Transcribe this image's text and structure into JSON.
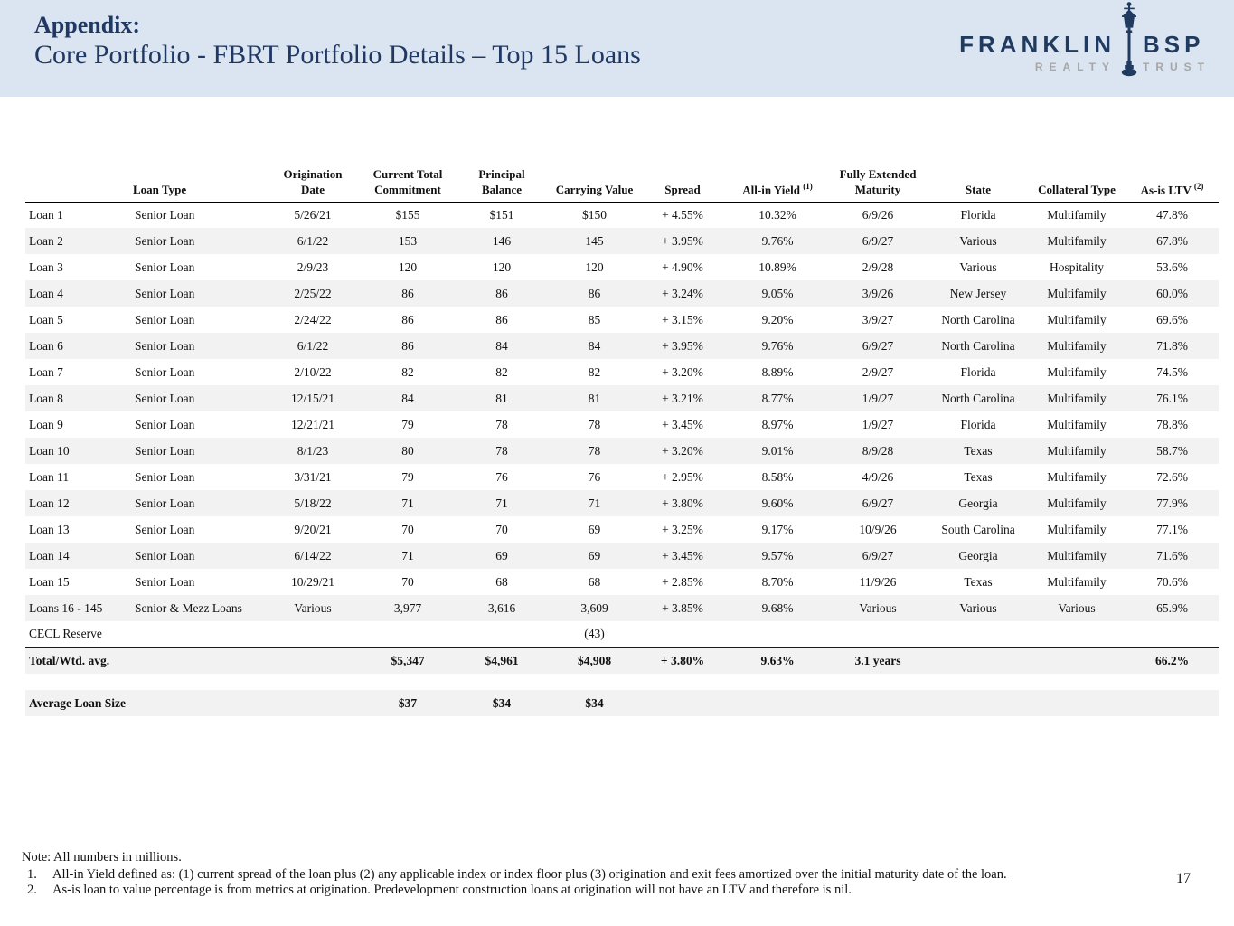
{
  "header": {
    "title_prefix": "Appendix:",
    "title": "Core Portfolio - FBRT Portfolio Details – Top 15 Loans",
    "background_color": "#dbe5f1",
    "title_color": "#1f3864"
  },
  "logo": {
    "name_left": "FRANKLIN",
    "name_right": "BSP",
    "sub_left": "REALTY",
    "sub_right": "TRUST",
    "navy_color": "#203a60",
    "gray_color": "#a6a6a6"
  },
  "table": {
    "header": [
      {
        "line1": "",
        "line2": ""
      },
      {
        "line1": "",
        "line2": "Loan Type"
      },
      {
        "line1": "Origination",
        "line2": "Date"
      },
      {
        "line1": "Current Total",
        "line2": "Commitment"
      },
      {
        "line1": "Principal",
        "line2": "Balance"
      },
      {
        "line1": "",
        "line2": "Carrying Value"
      },
      {
        "line1": "",
        "line2": "Spread"
      },
      {
        "line1": "",
        "line2": "All-in Yield ",
        "sup": "(1)"
      },
      {
        "line1": "Fully Extended",
        "line2": "Maturity"
      },
      {
        "line1": "",
        "line2": "State"
      },
      {
        "line1": "",
        "line2": "Collateral Type"
      },
      {
        "line1": "",
        "line2": "As-is LTV ",
        "sup": "(2)"
      }
    ],
    "rows": [
      {
        "shaded": false,
        "cells": [
          "Loan 1",
          "Senior Loan",
          "5/26/21",
          "$155",
          "$151",
          "$150",
          "+ 4.55%",
          "10.32%",
          "6/9/26",
          "Florida",
          "Multifamily",
          "47.8%"
        ]
      },
      {
        "shaded": true,
        "cells": [
          "Loan 2",
          "Senior Loan",
          "6/1/22",
          "153",
          "146",
          "145",
          "+ 3.95%",
          "9.76%",
          "6/9/27",
          "Various",
          "Multifamily",
          "67.8%"
        ]
      },
      {
        "shaded": false,
        "cells": [
          "Loan 3",
          "Senior Loan",
          "2/9/23",
          "120",
          "120",
          "120",
          "+ 4.90%",
          "10.89%",
          "2/9/28",
          "Various",
          "Hospitality",
          "53.6%"
        ]
      },
      {
        "shaded": true,
        "cells": [
          "Loan 4",
          "Senior Loan",
          "2/25/22",
          "86",
          "86",
          "86",
          "+ 3.24%",
          "9.05%",
          "3/9/26",
          "New Jersey",
          "Multifamily",
          "60.0%"
        ]
      },
      {
        "shaded": false,
        "cells": [
          "Loan 5",
          "Senior Loan",
          "2/24/22",
          "86",
          "86",
          "85",
          "+ 3.15%",
          "9.20%",
          "3/9/27",
          "North Carolina",
          "Multifamily",
          "69.6%"
        ]
      },
      {
        "shaded": true,
        "cells": [
          "Loan 6",
          "Senior Loan",
          "6/1/22",
          "86",
          "84",
          "84",
          "+ 3.95%",
          "9.76%",
          "6/9/27",
          "North Carolina",
          "Multifamily",
          "71.8%"
        ]
      },
      {
        "shaded": false,
        "cells": [
          "Loan 7",
          "Senior Loan",
          "2/10/22",
          "82",
          "82",
          "82",
          "+ 3.20%",
          "8.89%",
          "2/9/27",
          "Florida",
          "Multifamily",
          "74.5%"
        ]
      },
      {
        "shaded": true,
        "cells": [
          "Loan 8",
          "Senior Loan",
          "12/15/21",
          "84",
          "81",
          "81",
          "+ 3.21%",
          "8.77%",
          "1/9/27",
          "North Carolina",
          "Multifamily",
          "76.1%"
        ]
      },
      {
        "shaded": false,
        "cells": [
          "Loan 9",
          "Senior Loan",
          "12/21/21",
          "79",
          "78",
          "78",
          "+ 3.45%",
          "8.97%",
          "1/9/27",
          "Florida",
          "Multifamily",
          "78.8%"
        ]
      },
      {
        "shaded": true,
        "cells": [
          "Loan 10",
          "Senior Loan",
          "8/1/23",
          "80",
          "78",
          "78",
          "+ 3.20%",
          "9.01%",
          "8/9/28",
          "Texas",
          "Multifamily",
          "58.7%"
        ]
      },
      {
        "shaded": false,
        "cells": [
          "Loan 11",
          "Senior Loan",
          "3/31/21",
          "79",
          "76",
          "76",
          "+ 2.95%",
          "8.58%",
          "4/9/26",
          "Texas",
          "Multifamily",
          "72.6%"
        ]
      },
      {
        "shaded": true,
        "cells": [
          "Loan 12",
          "Senior Loan",
          "5/18/22",
          "71",
          "71",
          "71",
          "+ 3.80%",
          "9.60%",
          "6/9/27",
          "Georgia",
          "Multifamily",
          "77.9%"
        ]
      },
      {
        "shaded": false,
        "cells": [
          "Loan 13",
          "Senior Loan",
          "9/20/21",
          "70",
          "70",
          "69",
          "+ 3.25%",
          "9.17%",
          "10/9/26",
          "South Carolina",
          "Multifamily",
          "77.1%"
        ]
      },
      {
        "shaded": true,
        "cells": [
          "Loan 14",
          "Senior Loan",
          "6/14/22",
          "71",
          "69",
          "69",
          "+ 3.45%",
          "9.57%",
          "6/9/27",
          "Georgia",
          "Multifamily",
          "71.6%"
        ]
      },
      {
        "shaded": false,
        "cells": [
          "Loan 15",
          "Senior Loan",
          "10/29/21",
          "70",
          "68",
          "68",
          "+ 2.85%",
          "8.70%",
          "11/9/26",
          "Texas",
          "Multifamily",
          "70.6%"
        ]
      },
      {
        "shaded": true,
        "cells": [
          "Loans 16 - 145",
          "Senior & Mezz Loans",
          "Various",
          "3,977",
          "3,616",
          "3,609",
          "+ 3.85%",
          "9.68%",
          "Various",
          "Various",
          "Various",
          "65.9%"
        ]
      },
      {
        "shaded": false,
        "divider_below": true,
        "cells": [
          "CECL Reserve",
          "",
          "",
          "",
          "",
          "(43)",
          "",
          "",
          "",
          "",
          "",
          ""
        ]
      },
      {
        "shaded": true,
        "bold": true,
        "cells": [
          "Total/Wtd. avg.",
          "",
          "",
          "$5,347",
          "$4,961",
          "$4,908",
          "+ 3.80%",
          "9.63%",
          "3.1 years",
          "",
          "",
          "66.2%"
        ]
      },
      {
        "shaded": true,
        "bold": true,
        "spacer_before": true,
        "cells": [
          "Average Loan Size",
          "",
          "",
          "$37",
          "$34",
          "$34",
          "",
          "",
          "",
          "",
          "",
          ""
        ]
      }
    ]
  },
  "notes": {
    "note": "Note: All numbers in millions.",
    "items": [
      {
        "num": "1.",
        "text": "All-in Yield defined as: (1) current spread of the loan plus (2) any applicable index or index floor plus (3) origination and exit fees amortized over the initial maturity date of the loan."
      },
      {
        "num": "2.",
        "text": "As-is loan to value percentage is from metrics at origination. Predevelopment construction loans at origination will not have an LTV and therefore is nil."
      }
    ]
  },
  "page_number": "17"
}
